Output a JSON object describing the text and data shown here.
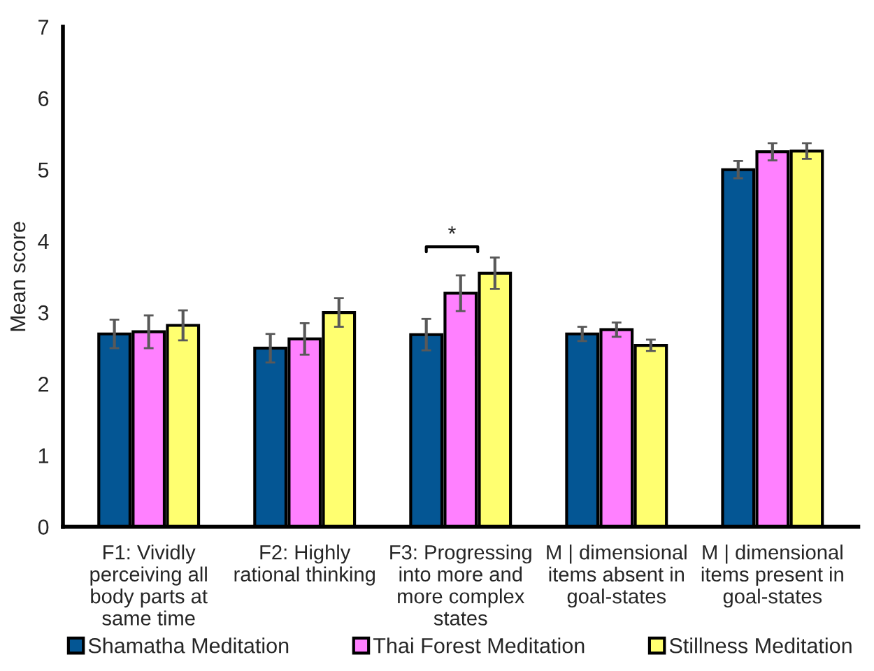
{
  "chart_data": {
    "type": "bar",
    "ylabel": "Mean score",
    "categories": [
      "F1: Vividly perceiving all body parts at same time",
      "F2: Highly rational thinking",
      "F3: Progressing into more and more complex states",
      "M | dimensional items absent in goal-states",
      "M | dimensional items present in goal-states"
    ],
    "series": [
      {
        "name": "Shamatha Meditation",
        "color": "#045694",
        "values": [
          2.7,
          2.5,
          2.69,
          2.7,
          5.0
        ],
        "errors": [
          0.2,
          0.2,
          0.22,
          0.1,
          0.12
        ]
      },
      {
        "name": "Thai Forest Meditation",
        "color": "#ff80ff",
        "values": [
          2.73,
          2.63,
          3.27,
          2.76,
          5.25
        ],
        "errors": [
          0.23,
          0.22,
          0.25,
          0.1,
          0.12
        ]
      },
      {
        "name": "Stillness Meditation",
        "color": "#ffff70",
        "values": [
          2.82,
          3.0,
          3.55,
          2.54,
          5.26
        ],
        "errors": [
          0.21,
          0.2,
          0.22,
          0.08,
          0.11
        ]
      }
    ],
    "ylim": [
      0,
      7
    ],
    "yticks": [
      0,
      1,
      2,
      3,
      4,
      5,
      6,
      7
    ],
    "grid": false,
    "legend": "bottom",
    "annotations": [
      "*"
    ]
  }
}
